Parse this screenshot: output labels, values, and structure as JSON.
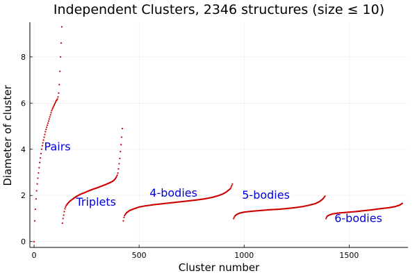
{
  "chart_data": {
    "type": "scatter",
    "title": "Independent Clusters, 2346 structures (size ≤ 10)",
    "xlabel": "Cluster number",
    "ylabel": "Diameter of cluster",
    "xlim": [
      -20,
      1780
    ],
    "ylim": [
      -0.25,
      9.5
    ],
    "xticks": [
      0,
      500,
      1000,
      1500
    ],
    "yticks": [
      0,
      2,
      4,
      6,
      8
    ],
    "grid": true,
    "legend": "none",
    "marker_color": "#cc0000",
    "annotation_color": "#0000dd",
    "series": [
      {
        "points": [
          [
            0,
            0.0
          ],
          [
            2,
            0.7
          ],
          [
            4,
            1.1
          ],
          [
            6,
            1.4
          ],
          [
            8,
            1.7
          ],
          [
            10,
            2.0
          ],
          [
            13,
            2.3
          ],
          [
            16,
            2.6
          ],
          [
            20,
            2.9
          ],
          [
            24,
            3.2
          ],
          [
            28,
            3.5
          ],
          [
            32,
            3.75
          ],
          [
            36,
            4.0
          ],
          [
            40,
            4.2
          ],
          [
            45,
            4.4
          ],
          [
            50,
            4.6
          ],
          [
            55,
            4.8
          ],
          [
            60,
            4.95
          ],
          [
            65,
            5.1
          ],
          [
            70,
            5.25
          ],
          [
            75,
            5.4
          ],
          [
            80,
            5.55
          ],
          [
            85,
            5.7
          ],
          [
            90,
            5.8
          ],
          [
            95,
            5.9
          ],
          [
            100,
            6.0
          ],
          [
            105,
            6.1
          ],
          [
            110,
            6.15
          ],
          [
            115,
            6.3
          ],
          [
            118,
            6.5
          ],
          [
            120,
            6.8
          ],
          [
            122,
            7.2
          ],
          [
            124,
            7.55
          ],
          [
            126,
            8.0
          ],
          [
            128,
            8.5
          ],
          [
            130,
            8.7
          ],
          [
            132,
            9.3
          ]
        ]
      },
      {
        "points": [
          [
            135,
            0.8
          ],
          [
            138,
            1.0
          ],
          [
            142,
            1.2
          ],
          [
            146,
            1.4
          ],
          [
            152,
            1.55
          ],
          [
            160,
            1.65
          ],
          [
            170,
            1.75
          ],
          [
            185,
            1.85
          ],
          [
            200,
            1.95
          ],
          [
            220,
            2.05
          ],
          [
            240,
            2.12
          ],
          [
            260,
            2.2
          ],
          [
            280,
            2.27
          ],
          [
            300,
            2.33
          ],
          [
            320,
            2.4
          ],
          [
            340,
            2.47
          ],
          [
            360,
            2.55
          ],
          [
            375,
            2.62
          ],
          [
            385,
            2.7
          ],
          [
            395,
            2.85
          ],
          [
            400,
            3.0
          ],
          [
            404,
            3.3
          ],
          [
            408,
            3.6
          ],
          [
            412,
            4.0
          ],
          [
            416,
            4.4
          ],
          [
            420,
            4.9
          ]
        ]
      },
      {
        "points": [
          [
            425,
            0.9
          ],
          [
            428,
            1.05
          ],
          [
            432,
            1.15
          ],
          [
            440,
            1.25
          ],
          [
            455,
            1.35
          ],
          [
            475,
            1.42
          ],
          [
            500,
            1.5
          ],
          [
            530,
            1.55
          ],
          [
            570,
            1.6
          ],
          [
            610,
            1.64
          ],
          [
            650,
            1.68
          ],
          [
            690,
            1.72
          ],
          [
            730,
            1.76
          ],
          [
            770,
            1.8
          ],
          [
            810,
            1.85
          ],
          [
            850,
            1.92
          ],
          [
            880,
            2.0
          ],
          [
            900,
            2.07
          ],
          [
            915,
            2.15
          ],
          [
            925,
            2.22
          ],
          [
            935,
            2.3
          ],
          [
            940,
            2.4
          ],
          [
            945,
            2.52
          ]
        ]
      },
      {
        "points": [
          [
            950,
            1.0
          ],
          [
            955,
            1.1
          ],
          [
            965,
            1.18
          ],
          [
            980,
            1.24
          ],
          [
            1000,
            1.28
          ],
          [
            1040,
            1.32
          ],
          [
            1080,
            1.35
          ],
          [
            1120,
            1.38
          ],
          [
            1160,
            1.4
          ],
          [
            1200,
            1.43
          ],
          [
            1240,
            1.47
          ],
          [
            1280,
            1.52
          ],
          [
            1310,
            1.58
          ],
          [
            1340,
            1.65
          ],
          [
            1360,
            1.74
          ],
          [
            1375,
            1.85
          ],
          [
            1385,
            1.97
          ]
        ]
      },
      {
        "points": [
          [
            1390,
            1.0
          ],
          [
            1395,
            1.1
          ],
          [
            1405,
            1.15
          ],
          [
            1420,
            1.2
          ],
          [
            1450,
            1.24
          ],
          [
            1490,
            1.27
          ],
          [
            1530,
            1.3
          ],
          [
            1570,
            1.34
          ],
          [
            1610,
            1.38
          ],
          [
            1650,
            1.43
          ],
          [
            1690,
            1.47
          ],
          [
            1720,
            1.52
          ],
          [
            1740,
            1.58
          ],
          [
            1755,
            1.67
          ]
        ]
      }
    ],
    "annotations": [
      {
        "text": "Pairs",
        "x": 48,
        "y": 3.95
      },
      {
        "text": "Triplets",
        "x": 200,
        "y": 1.55
      },
      {
        "text": "4-bodies",
        "x": 550,
        "y": 1.95
      },
      {
        "text": "5-bodies",
        "x": 990,
        "y": 1.85
      },
      {
        "text": "6-bodies",
        "x": 1430,
        "y": 0.85
      }
    ]
  }
}
